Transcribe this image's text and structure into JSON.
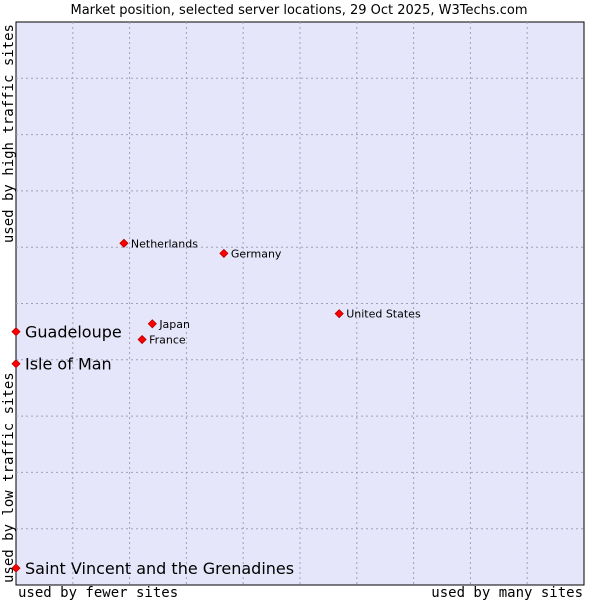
{
  "chart_data": {
    "type": "scatter",
    "title": "Market position, selected server locations, 29 Oct 2025, W3Techs.com",
    "xlabel_left": "used by fewer sites",
    "xlabel_right": "used by many sites",
    "ylabel_bottom": "used by low traffic sites",
    "ylabel_top": "used by high traffic sites",
    "xlim": [
      0,
      100
    ],
    "ylim": [
      0,
      100
    ],
    "grid": true,
    "point_color": "#ff0000",
    "plot_background": "#e6e6fa",
    "points": [
      {
        "label": "Netherlands",
        "x": 19.0,
        "y": 60.7,
        "emphasis": false
      },
      {
        "label": "Germany",
        "x": 36.6,
        "y": 58.9,
        "emphasis": false
      },
      {
        "label": "United States",
        "x": 56.9,
        "y": 48.2,
        "emphasis": false
      },
      {
        "label": "Japan",
        "x": 24.0,
        "y": 46.4,
        "emphasis": false
      },
      {
        "label": "France",
        "x": 22.2,
        "y": 43.6,
        "emphasis": false
      },
      {
        "label": "Guadeloupe",
        "x": 0.0,
        "y": 45.0,
        "emphasis": true
      },
      {
        "label": "Isle of Man",
        "x": 0.0,
        "y": 39.3,
        "emphasis": true
      },
      {
        "label": "Saint Vincent and the Grenadines",
        "x": 0.0,
        "y": 3.0,
        "emphasis": true
      }
    ]
  }
}
